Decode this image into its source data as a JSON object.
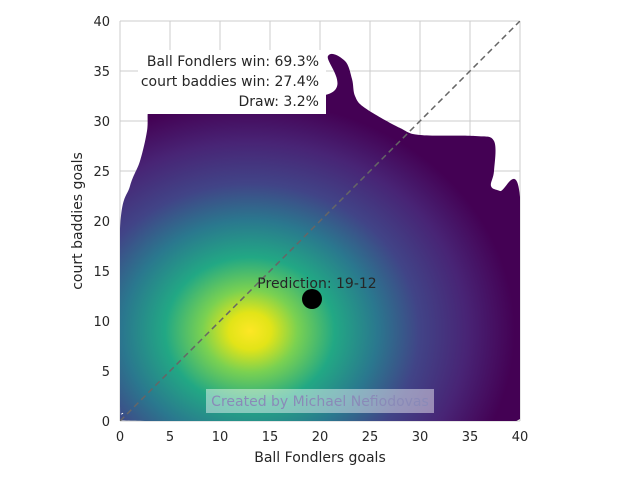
{
  "chart_data": {
    "type": "heatmap",
    "title": "",
    "xlabel": "Ball Fondlers goals",
    "ylabel": "court baddies goals",
    "xlim": [
      0,
      40
    ],
    "ylim": [
      0,
      40
    ],
    "xticks": [
      0,
      5,
      10,
      15,
      20,
      25,
      30,
      35,
      40
    ],
    "yticks": [
      0,
      5,
      10,
      15,
      20,
      25,
      30,
      35,
      40
    ],
    "grid": true,
    "colormap": "viridis",
    "density_peak": {
      "x": 13,
      "y": 9
    },
    "density_outline": [
      [
        0.3,
        0.8
      ],
      [
        0,
        1.5
      ],
      [
        0,
        19
      ],
      [
        1,
        23.5
      ],
      [
        2,
        26
      ],
      [
        2.7,
        29
      ],
      [
        2.8,
        31
      ],
      [
        3.3,
        32.3
      ],
      [
        4,
        32.6
      ],
      [
        20.5,
        32.6
      ],
      [
        20.8,
        36.5
      ],
      [
        22.5,
        36
      ],
      [
        23.2,
        34.2
      ],
      [
        23.5,
        32.5
      ],
      [
        24.5,
        31.3
      ],
      [
        28,
        29.3
      ],
      [
        30,
        28.6
      ],
      [
        35.5,
        28.5
      ],
      [
        37.4,
        28
      ],
      [
        37.4,
        25
      ],
      [
        37.1,
        23.5
      ],
      [
        38,
        23
      ],
      [
        40,
        22.4
      ],
      [
        40,
        0.2
      ],
      [
        2.5,
        0
      ]
    ],
    "diagonal": {
      "from": [
        0,
        0
      ],
      "to": [
        40,
        40
      ],
      "style": "dashed",
      "color": "#666666"
    },
    "prediction_point": {
      "x": 19.2,
      "y": 12.2,
      "label": "Prediction: 19-12"
    },
    "probabilities": [
      "Ball Fondlers win: 69.3%",
      "court baddies win: 27.4%",
      "Draw: 3.2%"
    ],
    "watermark": "Created by Michael Nefiodovas"
  }
}
